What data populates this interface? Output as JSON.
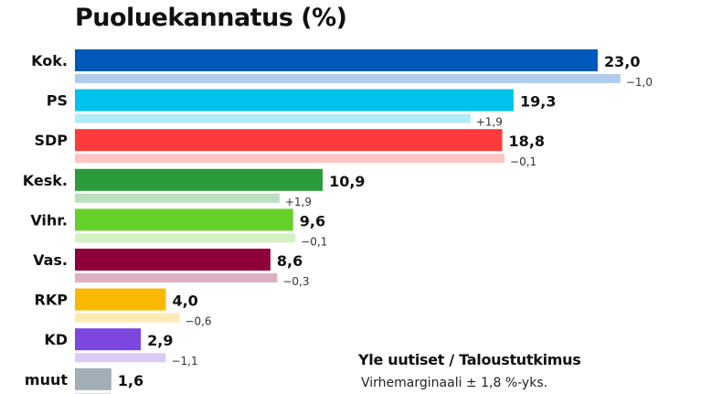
{
  "chart_data": {
    "type": "bar",
    "orientation": "horizontal",
    "title": "Puoluekannatus (%)",
    "categories": [
      "Kok.",
      "PS",
      "SDP",
      "Kesk.",
      "Vihr.",
      "Vas.",
      "RKP",
      "KD",
      "muut"
    ],
    "values": [
      23.0,
      19.3,
      18.8,
      10.9,
      9.6,
      8.6,
      4.0,
      2.9,
      1.6
    ],
    "value_labels": [
      "23,0",
      "19,3",
      "18,8",
      "10,9",
      "9,6",
      "8,6",
      "4,0",
      "2,9",
      "1,6"
    ],
    "changes": [
      -1.0,
      1.9,
      -0.1,
      1.9,
      -0.1,
      -0.3,
      -0.6,
      -1.1,
      null
    ],
    "change_labels": [
      "−1,0",
      "+1,9",
      "−0,1",
      "+1,9",
      "−0,1",
      "−0,3",
      "−0,6",
      "−1,1",
      ""
    ],
    "colors": [
      "#0059b8",
      "#00c2ec",
      "#ff3a3a",
      "#2b9c3c",
      "#67d12c",
      "#8f003a",
      "#f9b900",
      "#7c46e0",
      "#a1aeb5"
    ],
    "previous_colors": [
      "#b1cdec",
      "#b0ecf9",
      "#ffc4c4",
      "#b9e0bf",
      "#d4f2c1",
      "#dfb0c3",
      "#fde9b3",
      "#d9cbf7",
      "#dde2e5"
    ],
    "grid": false,
    "legend": "none"
  },
  "source": {
    "title": "Yle uutiset / Taloustutkimus",
    "note": "Virhemarginaali ± 1,8 %-yks."
  }
}
